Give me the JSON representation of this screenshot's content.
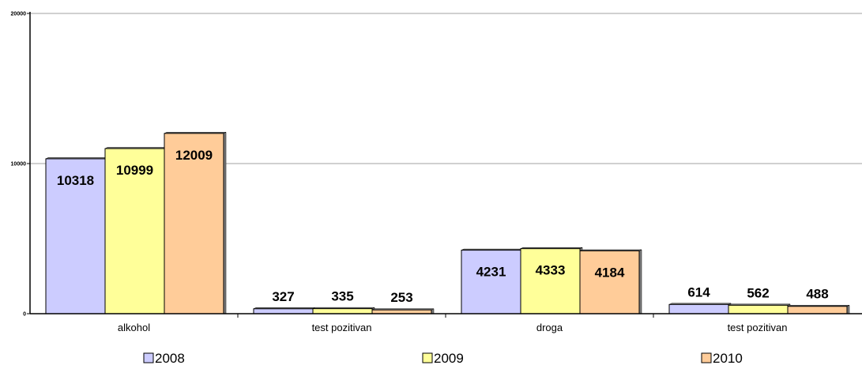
{
  "chart_data": {
    "type": "bar",
    "categories": [
      "alkohol",
      "test pozitivan",
      "droga",
      "test pozitivan"
    ],
    "series": [
      {
        "name": "2008",
        "values": [
          10318,
          327,
          4231,
          614
        ],
        "color": "#CCCCFF"
      },
      {
        "name": "2009",
        "values": [
          10999,
          335,
          4333,
          562
        ],
        "color": "#FFFF99"
      },
      {
        "name": "2010",
        "values": [
          12009,
          253,
          4184,
          488
        ],
        "color": "#FFCC99"
      }
    ],
    "y_ticks": [
      "0",
      "10000",
      "20000"
    ],
    "ylim": [
      0,
      20000
    ],
    "grid": true,
    "legend_position": "bottom",
    "title": "",
    "xlabel": "",
    "ylabel": ""
  }
}
